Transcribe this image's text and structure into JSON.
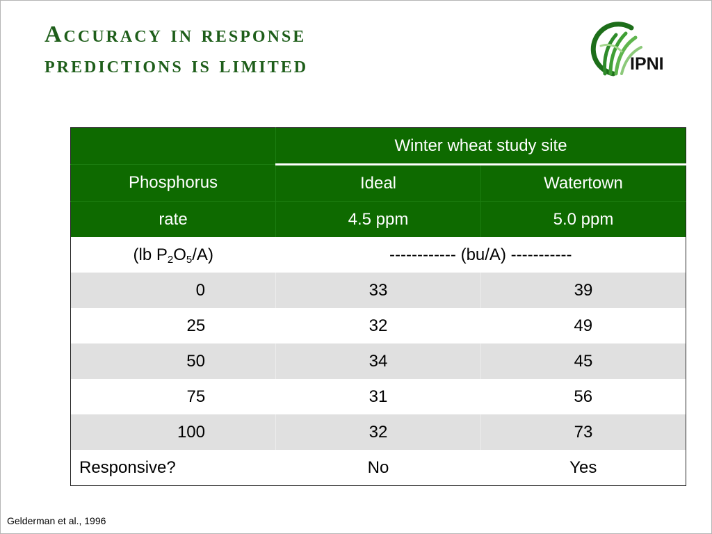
{
  "title": {
    "line1": "Accuracy in response",
    "line2": "predictions is limited"
  },
  "logo": {
    "text": "IPNI",
    "icon": "ipni-wheat-logo-icon"
  },
  "table": {
    "header_group": "Winter wheat study site",
    "col1_header": "Phosphorus",
    "sites": [
      "Ideal",
      "Watertown"
    ],
    "col1_subheader": "rate",
    "soil_test": [
      "4.5 ppm",
      "5.0 ppm"
    ],
    "units_row": {
      "rate_prefix": "(lb P",
      "sub1": "2",
      "o": "O",
      "sub2": "5",
      "rate_suffix": "/A)",
      "yield_units": "------------ (bu/A) -----------"
    },
    "rows": [
      {
        "rate": "0",
        "ideal": "33",
        "watertown": "39"
      },
      {
        "rate": "25",
        "ideal": "32",
        "watertown": "49"
      },
      {
        "rate": "50",
        "ideal": "34",
        "watertown": "45"
      },
      {
        "rate": "75",
        "ideal": "31",
        "watertown": "56"
      },
      {
        "rate": "100",
        "ideal": "32",
        "watertown": "73"
      }
    ],
    "responsive": {
      "label": "Responsive?",
      "ideal": "No",
      "watertown": "Yes"
    }
  },
  "citation": "Gelderman et al., 1996",
  "colors": {
    "header_green": "#0e6a00",
    "title_green": "#1e5e1a",
    "row_shade": "#e0e0e0"
  }
}
